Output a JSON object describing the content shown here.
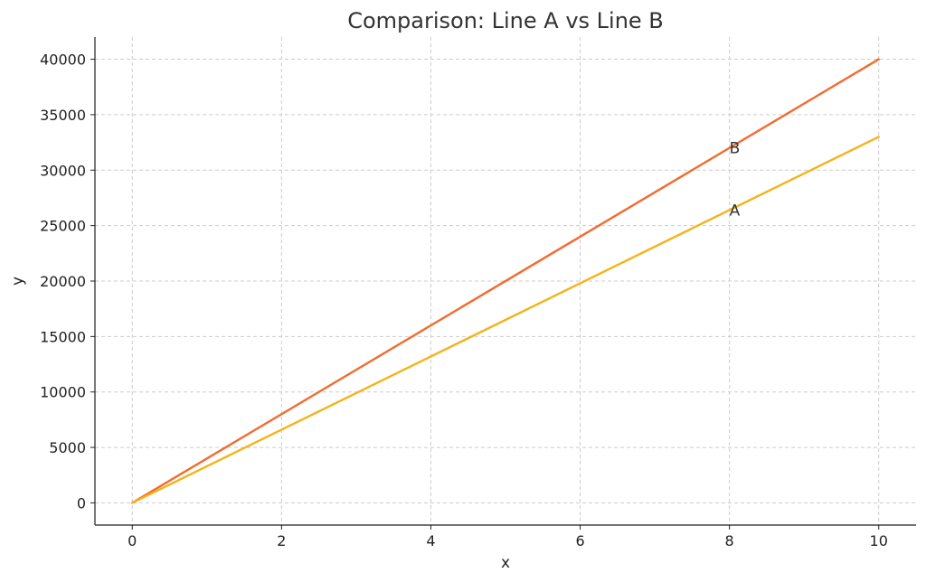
{
  "chart_data": {
    "type": "line",
    "title": "Comparison: Line A vs Line B",
    "xlabel": "x",
    "ylabel": "y",
    "xlim": [
      -0.5,
      10.5
    ],
    "ylim": [
      -2000,
      42000
    ],
    "x_ticks": [
      0,
      2,
      4,
      6,
      8,
      10
    ],
    "y_ticks": [
      0,
      5000,
      10000,
      15000,
      20000,
      25000,
      30000,
      35000,
      40000
    ],
    "grid": true,
    "legend": "none",
    "series": [
      {
        "key": "b",
        "color": "#f26b2f",
        "x": [
          0,
          10
        ],
        "values": [
          0,
          40000
        ]
      },
      {
        "key": "a",
        "color": "#f5b21a",
        "x": [
          0,
          10
        ],
        "values": [
          0,
          33000
        ]
      }
    ],
    "annotations": [
      {
        "text": "B",
        "x": 8,
        "y": 32000,
        "series": "b"
      },
      {
        "text": "A",
        "x": 8,
        "y": 26400,
        "series": "a"
      }
    ]
  }
}
